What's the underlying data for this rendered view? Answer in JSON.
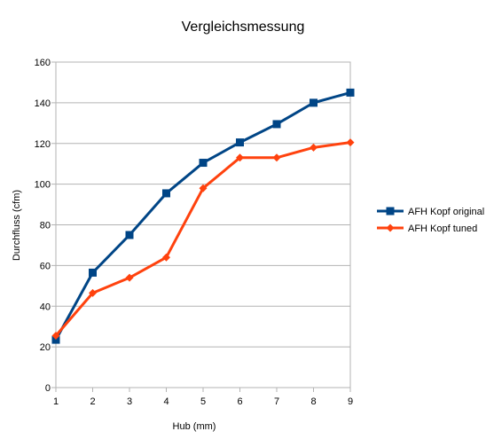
{
  "chart_data": {
    "type": "line",
    "title": "Vergleichsmessung",
    "xlabel": "Hub (mm)",
    "ylabel": "Durchfluss (cfm)",
    "x": [
      1,
      2,
      3,
      4,
      5,
      6,
      7,
      8,
      9
    ],
    "xlim": [
      1,
      9
    ],
    "ylim": [
      0,
      160
    ],
    "yticks": [
      0,
      20,
      40,
      60,
      80,
      100,
      120,
      140,
      160
    ],
    "grid": "horizontal",
    "legend_position": "right",
    "series": [
      {
        "name": "AFH Kopf original",
        "color": "#004586",
        "marker": "square",
        "values": [
          23.5,
          56.5,
          75,
          95.5,
          110.5,
          120.5,
          129.5,
          140,
          145
        ]
      },
      {
        "name": "AFH Kopf tuned",
        "color": "#ff420e",
        "marker": "diamond",
        "values": [
          25.5,
          46.5,
          54,
          64,
          98,
          113,
          113,
          118,
          120.5
        ]
      }
    ]
  }
}
